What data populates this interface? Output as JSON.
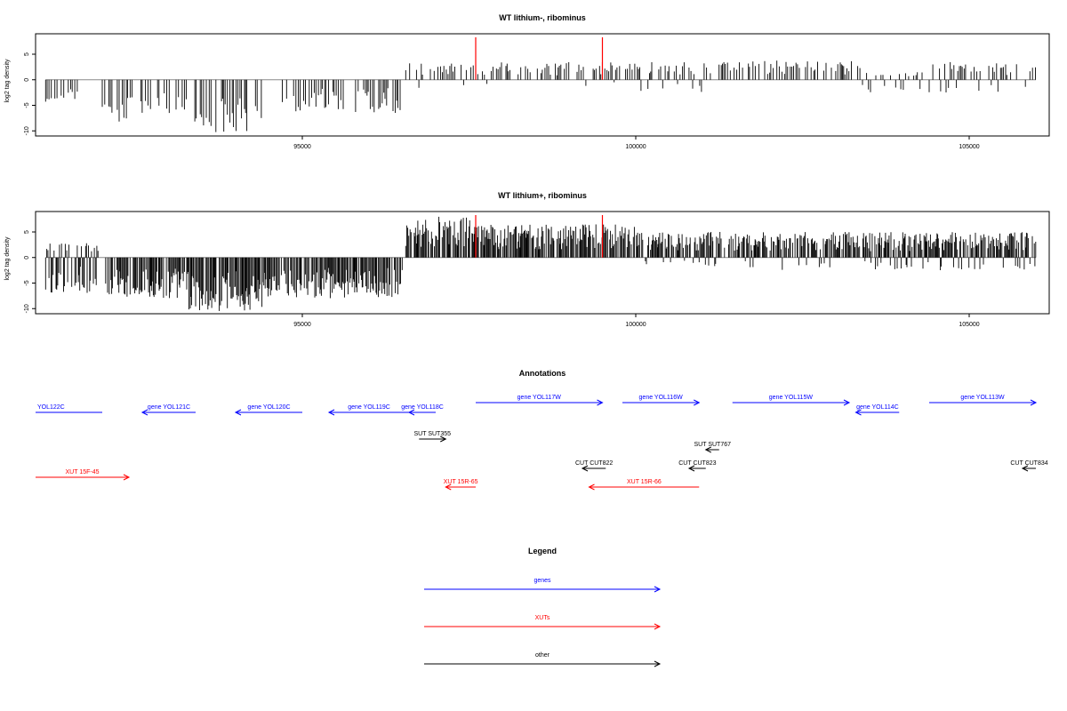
{
  "colors": {
    "bars": "#000000",
    "highlight": "#ff0000",
    "baseline": "#888888",
    "genes": "#0000ff",
    "xuts": "#ff0000",
    "other": "#000000"
  },
  "chart_data": [
    {
      "type": "bar",
      "title": "WT lithium-, ribominus",
      "ylabel": "log2 tag density",
      "xlim": [
        91000,
        106200
      ],
      "ylim": [
        -11,
        9
      ],
      "xticks": [
        95000,
        100000,
        105000
      ],
      "yticks": [
        5,
        0,
        -5,
        -10
      ],
      "grid": false,
      "highlight_positions": [
        97600,
        99500
      ],
      "regions": [
        {
          "x0": 91150,
          "x1": 91650,
          "min": -4.5,
          "max": 0
        },
        {
          "x0": 92000,
          "x1": 92800,
          "min": -8.5,
          "max": 0
        },
        {
          "x0": 92800,
          "x1": 93300,
          "min": -7,
          "max": 0
        },
        {
          "x0": 93350,
          "x1": 94200,
          "min": -10.5,
          "max": 0
        },
        {
          "x0": 94200,
          "x1": 94450,
          "min": -9,
          "max": 0
        },
        {
          "x0": 94700,
          "x1": 96500,
          "min": -6.5,
          "max": 0
        },
        {
          "x0": 96550,
          "x1": 97600,
          "min": -2,
          "max": 3.5
        },
        {
          "x0": 97600,
          "x1": 100000,
          "min": -1.5,
          "max": 3.5
        },
        {
          "x0": 100000,
          "x1": 101300,
          "min": -3,
          "max": 3.5
        },
        {
          "x0": 101300,
          "x1": 103400,
          "min": -1,
          "max": 3.8
        },
        {
          "x0": 103400,
          "x1": 104300,
          "min": -2.5,
          "max": 1.5
        },
        {
          "x0": 104400,
          "x1": 106000,
          "min": -2.5,
          "max": 3.5
        }
      ],
      "density": 0.5
    },
    {
      "type": "bar",
      "title": "WT lithium+, ribominus",
      "ylabel": "log2 tag density",
      "xlim": [
        91000,
        106200
      ],
      "ylim": [
        -11,
        9
      ],
      "xticks": [
        95000,
        100000,
        105000
      ],
      "yticks": [
        5,
        0,
        -5,
        -10
      ],
      "grid": false,
      "highlight_positions": [
        97600,
        99500
      ],
      "regions": [
        {
          "x0": 91150,
          "x1": 91950,
          "min": -7,
          "max": 3
        },
        {
          "x0": 92050,
          "x1": 93300,
          "min": -8,
          "max": 0
        },
        {
          "x0": 93300,
          "x1": 94400,
          "min": -10.5,
          "max": 0
        },
        {
          "x0": 94400,
          "x1": 96500,
          "min": -8,
          "max": 0
        },
        {
          "x0": 96550,
          "x1": 97600,
          "min": -2,
          "max": 8
        },
        {
          "x0": 97600,
          "x1": 100000,
          "min": -2,
          "max": 6.5
        },
        {
          "x0": 100000,
          "x1": 106000,
          "min": -2.5,
          "max": 5
        }
      ],
      "density": 1.0
    },
    {
      "type": "table",
      "title": "Annotations",
      "features": [
        {
          "label": "YOL122C",
          "kind": "genes",
          "x0": 91000,
          "x1": 92000,
          "row": 0,
          "dir": "none"
        },
        {
          "label": "gene YOL121C",
          "kind": "genes",
          "x0": 92600,
          "x1": 93400,
          "row": 0,
          "dir": "left"
        },
        {
          "label": "gene YOL120C",
          "kind": "genes",
          "x0": 94000,
          "x1": 95000,
          "row": 0,
          "dir": "left"
        },
        {
          "label": "gene YOL119C",
          "kind": "genes",
          "x0": 95400,
          "x1": 96600,
          "row": 0,
          "dir": "left"
        },
        {
          "label": "gene YOL118C",
          "kind": "genes",
          "x0": 96600,
          "x1": 97000,
          "row": 0,
          "dir": "left"
        },
        {
          "label": "gene YOL117W",
          "kind": "genes",
          "x0": 97600,
          "x1": 99500,
          "row": -1,
          "dir": "right"
        },
        {
          "label": "gene YOL116W",
          "kind": "genes",
          "x0": 99800,
          "x1": 100950,
          "row": -1,
          "dir": "right"
        },
        {
          "label": "gene YOL115W",
          "kind": "genes",
          "x0": 101450,
          "x1": 103200,
          "row": -1,
          "dir": "right"
        },
        {
          "label": "gene YOL114C",
          "kind": "genes",
          "x0": 103300,
          "x1": 103950,
          "row": 0,
          "dir": "left"
        },
        {
          "label": "gene YOL113W",
          "kind": "genes",
          "x0": 104400,
          "x1": 106400,
          "row": -1,
          "dir": "right"
        },
        {
          "label": "SUT SUT355",
          "kind": "other",
          "x0": 96750,
          "x1": 97150,
          "row": 1,
          "dir": "right"
        },
        {
          "label": "SUT SUT767",
          "kind": "other",
          "x0": 101050,
          "x1": 101250,
          "row": 2,
          "dir": "left"
        },
        {
          "label": "CUT CUT822",
          "kind": "other",
          "x0": 99200,
          "x1": 99550,
          "row": 3,
          "dir": "left"
        },
        {
          "label": "CUT CUT823",
          "kind": "other",
          "x0": 100800,
          "x1": 101050,
          "row": 3,
          "dir": "left"
        },
        {
          "label": "CUT CUT834",
          "kind": "other",
          "x0": 105800,
          "x1": 106600,
          "row": 3,
          "dir": "left"
        },
        {
          "label": "XUT 15F-45",
          "kind": "xuts",
          "x0": 91000,
          "x1": 92400,
          "row": 4,
          "dir": "right"
        },
        {
          "label": "XUT 15R-65",
          "kind": "xuts",
          "x0": 97150,
          "x1": 97600,
          "row": 5,
          "dir": "left"
        },
        {
          "label": "XUT 15R-66",
          "kind": "xuts",
          "x0": 99300,
          "x1": 100950,
          "row": 5,
          "dir": "left"
        }
      ]
    },
    {
      "type": "table",
      "title": "Legend",
      "entries": [
        {
          "label": "genes",
          "kind": "genes"
        },
        {
          "label": "XUTs",
          "kind": "xuts"
        },
        {
          "label": "other",
          "kind": "other"
        }
      ]
    }
  ]
}
